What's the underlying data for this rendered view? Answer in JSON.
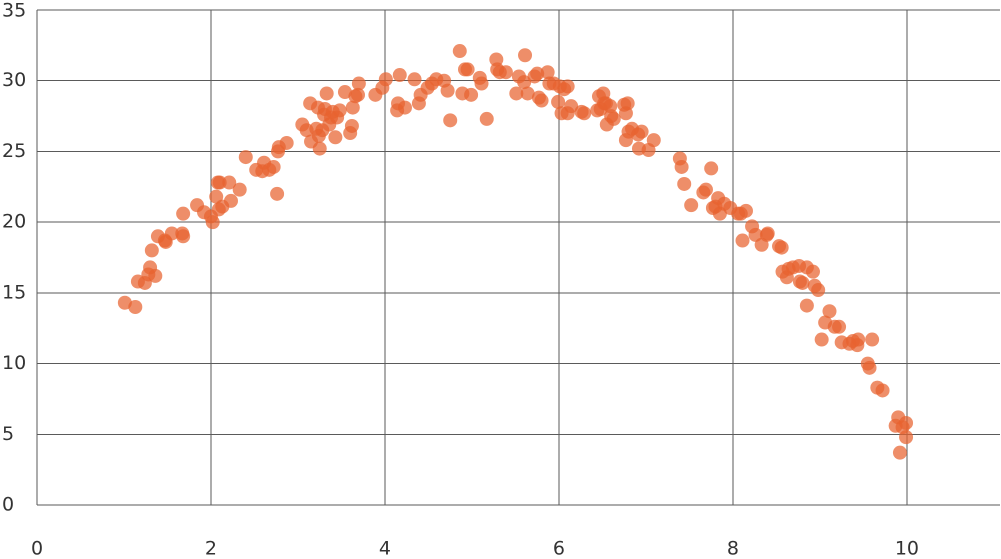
{
  "chart_data": {
    "type": "scatter",
    "color": "#e8622f",
    "grid": true,
    "xlim": [
      0,
      11.07
    ],
    "ylim": [
      0,
      35
    ],
    "xticks": [
      0,
      2,
      4,
      6,
      8,
      10
    ],
    "yticks": [
      0,
      5,
      10,
      15,
      20,
      25,
      30,
      35
    ],
    "x": [
      1.01,
      1.13,
      1.16,
      1.24,
      1.28,
      1.3,
      1.32,
      1.36,
      1.39,
      1.47,
      1.48,
      1.55,
      1.67,
      1.68,
      1.68,
      1.84,
      1.92,
      2.0,
      2.02,
      2.06,
      2.08,
      2.1,
      2.09,
      2.13,
      2.21,
      2.23,
      2.33,
      2.4,
      2.52,
      2.59,
      2.61,
      2.67,
      2.72,
      2.76,
      2.77,
      2.78,
      2.87,
      3.05,
      3.1,
      3.14,
      3.15,
      3.21,
      3.23,
      3.24,
      3.25,
      3.28,
      3.3,
      3.31,
      3.33,
      3.36,
      3.38,
      3.4,
      3.43,
      3.45,
      3.48,
      3.54,
      3.6,
      3.62,
      3.63,
      3.66,
      3.7,
      3.69,
      3.89,
      3.97,
      4.01,
      4.14,
      4.15,
      4.17,
      4.23,
      4.34,
      4.39,
      4.41,
      4.49,
      4.54,
      4.59,
      4.68,
      4.72,
      4.75,
      4.86,
      4.89,
      4.92,
      4.95,
      4.99,
      5.09,
      5.11,
      5.17,
      5.28,
      5.29,
      5.32,
      5.39,
      5.51,
      5.54,
      5.6,
      5.61,
      5.64,
      5.72,
      5.75,
      5.77,
      5.8,
      5.87,
      5.89,
      5.94,
      5.99,
      6.01,
      6.03,
      6.06,
      6.1,
      6.1,
      6.14,
      6.26,
      6.29,
      6.44,
      6.46,
      6.48,
      6.51,
      6.52,
      6.54,
      6.55,
      6.59,
      6.6,
      6.63,
      6.75,
      6.77,
      6.77,
      6.79,
      6.8,
      6.84,
      6.91,
      6.92,
      6.95,
      7.03,
      7.09,
      7.39,
      7.41,
      7.44,
      7.52,
      7.66,
      7.69,
      7.75,
      7.77,
      7.8,
      7.83,
      7.85,
      7.9,
      7.97,
      8.06,
      8.09,
      8.11,
      8.15,
      8.22,
      8.26,
      8.33,
      8.39,
      8.4,
      8.53,
      8.57,
      8.56,
      8.62,
      8.64,
      8.69,
      8.76,
      8.77,
      8.8,
      8.85,
      8.92,
      8.94,
      8.98,
      8.85,
      9.02,
      9.06,
      9.11,
      9.17,
      9.22,
      9.25,
      9.34,
      9.38,
      9.44,
      9.43,
      9.55,
      9.57,
      9.6,
      9.66,
      9.72,
      9.87,
      9.9,
      9.95,
      9.99,
      9.99,
      9.92
    ],
    "values": [
      14.3,
      14.0,
      15.8,
      15.7,
      16.3,
      16.8,
      18.0,
      16.2,
      19.0,
      18.7,
      18.6,
      19.2,
      19.2,
      19.0,
      20.6,
      21.2,
      20.7,
      20.4,
      20.0,
      21.8,
      22.8,
      22.8,
      20.9,
      21.1,
      22.8,
      21.5,
      22.3,
      24.6,
      23.7,
      23.6,
      24.2,
      23.7,
      23.9,
      22.0,
      25.0,
      25.3,
      25.6,
      26.9,
      26.5,
      28.4,
      25.7,
      26.6,
      28.1,
      26.1,
      25.2,
      26.5,
      27.6,
      28.0,
      29.1,
      26.9,
      27.4,
      27.8,
      26.0,
      27.4,
      27.9,
      29.2,
      26.3,
      26.8,
      28.1,
      28.9,
      29.8,
      29.0,
      29.0,
      29.5,
      30.1,
      27.9,
      28.4,
      30.4,
      28.1,
      30.1,
      28.4,
      29.0,
      29.5,
      29.8,
      30.1,
      30.0,
      29.3,
      27.2,
      32.1,
      29.1,
      30.8,
      30.8,
      29.0,
      30.2,
      29.8,
      27.3,
      31.5,
      30.8,
      30.6,
      30.6,
      29.1,
      30.3,
      29.9,
      31.8,
      29.1,
      30.3,
      30.5,
      28.8,
      28.6,
      30.6,
      29.8,
      29.8,
      28.5,
      29.6,
      27.7,
      29.4,
      29.6,
      27.7,
      28.2,
      27.8,
      27.7,
      27.9,
      28.9,
      28.0,
      29.1,
      28.4,
      28.4,
      26.9,
      28.2,
      27.5,
      27.3,
      28.3,
      27.7,
      25.8,
      28.4,
      26.4,
      26.6,
      26.2,
      25.2,
      26.4,
      25.1,
      25.8,
      24.5,
      23.9,
      22.7,
      21.2,
      22.1,
      22.3,
      23.8,
      21.0,
      21.1,
      21.7,
      20.6,
      21.3,
      21.0,
      20.6,
      20.6,
      18.7,
      20.8,
      19.7,
      19.1,
      18.4,
      19.1,
      19.2,
      18.3,
      16.5,
      18.2,
      16.1,
      16.7,
      16.8,
      16.9,
      15.8,
      15.7,
      16.8,
      16.5,
      15.5,
      15.2,
      14.1,
      11.7,
      12.9,
      13.7,
      12.6,
      12.6,
      11.5,
      11.4,
      11.6,
      11.7,
      11.3,
      10.0,
      9.7,
      11.7,
      8.3,
      8.1,
      5.6,
      6.2,
      5.5,
      5.8,
      4.8,
      3.7
    ]
  }
}
